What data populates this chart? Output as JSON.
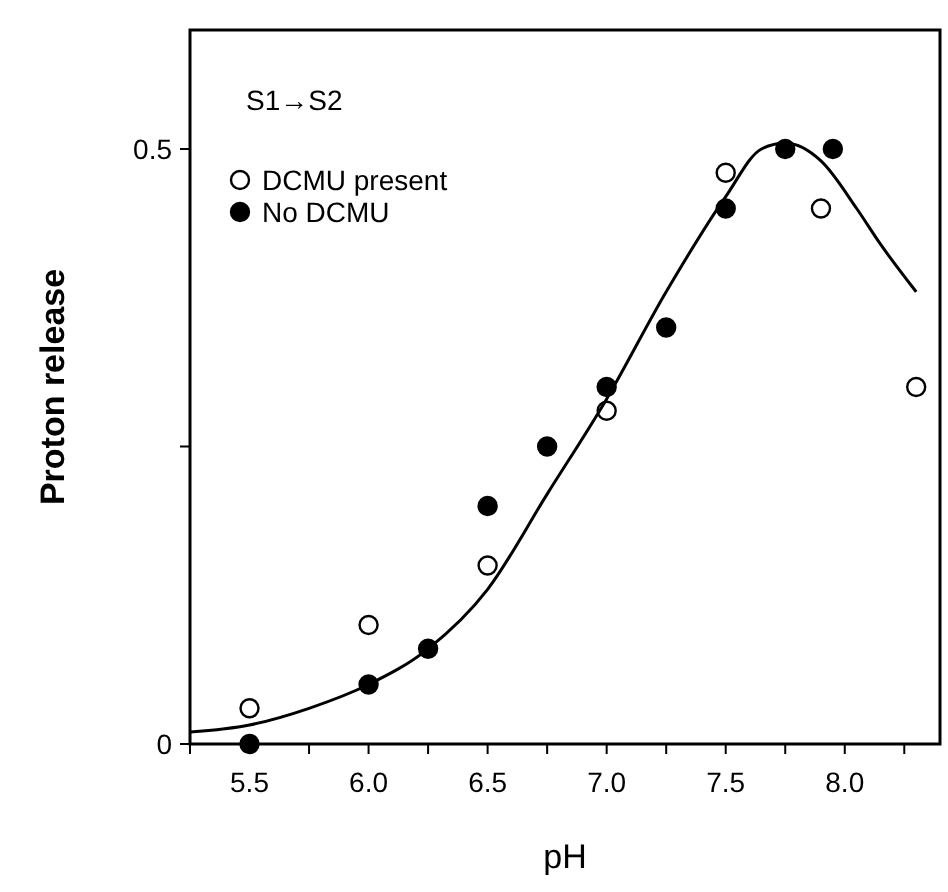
{
  "chart_data": {
    "type": "scatter",
    "xlabel": "pH",
    "ylabel": "Proton release",
    "annotations": [
      "S1→S2"
    ],
    "xlim": [
      5.25,
      8.4
    ],
    "ylim": [
      0,
      0.6
    ],
    "xticks": [
      {
        "value": 5.25,
        "label": null
      },
      5.5,
      {
        "value": 5.75,
        "label": null
      },
      {
        "value": 6.0,
        "label": "6.0"
      },
      {
        "value": 6.25,
        "label": null
      },
      6.5,
      {
        "value": 6.75,
        "label": null
      },
      {
        "value": 7.0,
        "label": "7.0"
      },
      {
        "value": 7.25,
        "label": null
      },
      7.5,
      {
        "value": 7.75,
        "label": null
      },
      {
        "value": 8.0,
        "label": "8.0"
      },
      {
        "value": 8.25,
        "label": null
      }
    ],
    "yticks": [
      0,
      {
        "value": 0.25,
        "label": null
      },
      0.5
    ],
    "grid": false,
    "legend": "top left",
    "marker": "circle",
    "series": [
      {
        "name": "DCMU present",
        "color": "#ffffff",
        "x": [
          5.5,
          6.0,
          6.5,
          7.0,
          7.5,
          7.9,
          8.3
        ],
        "values": [
          0.03,
          0.1,
          0.15,
          0.28,
          0.48,
          0.45,
          0.3
        ]
      },
      {
        "name": "No DCMU",
        "color": "#000000",
        "x": [
          5.5,
          6.0,
          6.25,
          6.5,
          6.75,
          7.0,
          7.25,
          7.5,
          7.75,
          7.95
        ],
        "values": [
          0,
          0.05,
          0.08,
          0.2,
          0.25,
          0.3,
          0.35,
          0.45,
          0.5,
          0.5
        ]
      },
      {
        "type": "line",
        "color": "#000000",
        "marker": "none",
        "line_style": "solid",
        "x": [
          5.25,
          5.5,
          5.75,
          6.0,
          6.25,
          6.5,
          6.75,
          7.0,
          7.25,
          7.5,
          7.65,
          7.75,
          7.9,
          8.05,
          8.15,
          8.3
        ],
        "values": [
          0.01,
          0.016,
          0.03,
          0.05,
          0.08,
          0.13,
          0.21,
          0.29,
          0.38,
          0.46,
          0.5,
          0.505,
          0.49,
          0.45,
          0.42,
          0.38
        ]
      }
    ]
  }
}
